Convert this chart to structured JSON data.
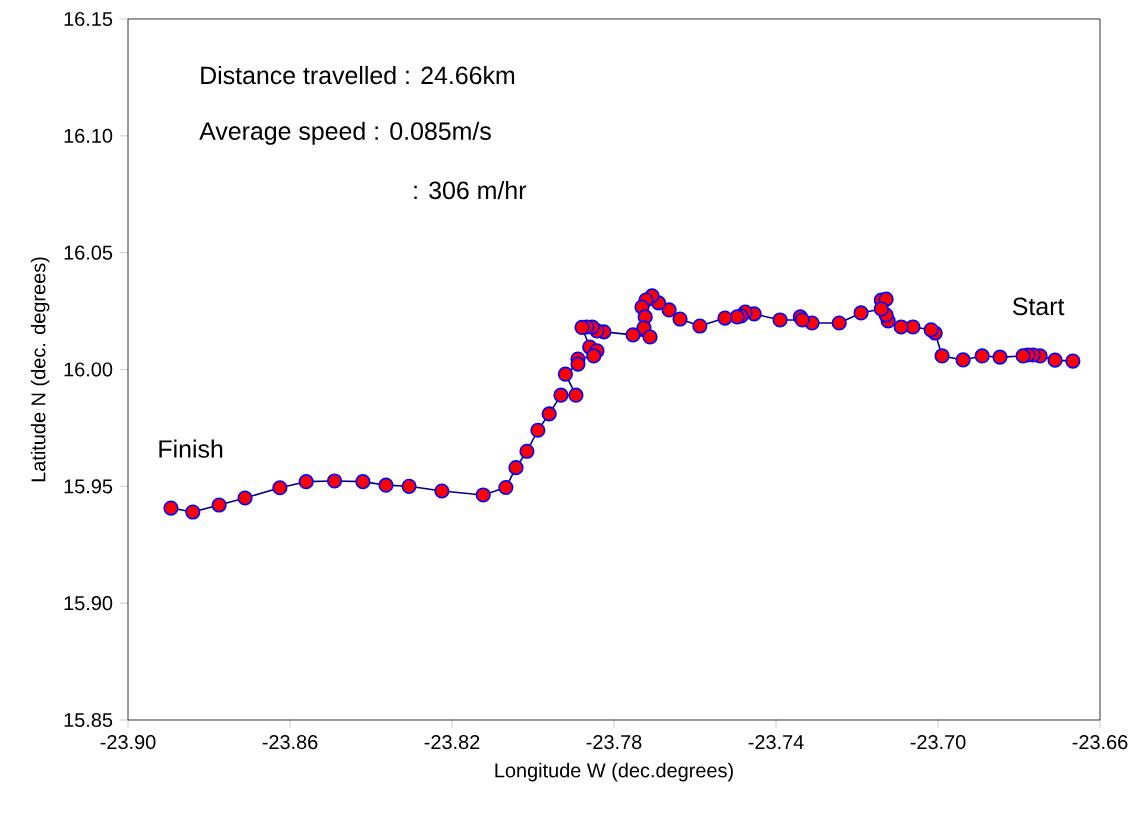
{
  "chart_data": {
    "type": "line",
    "xlabel": "Longitude W (dec.degrees)",
    "ylabel": "Latitude N (dec. degrees)",
    "annotations": [
      "Distance travelled : 24.66km",
      "Average speed : 0.085m/s",
      ": 306 m/hr",
      "Start",
      "Finish"
    ],
    "xlim": [
      -23.9,
      -23.66
    ],
    "ylim": [
      15.85,
      16.15
    ],
    "xticks": [
      {
        "value": -23.9,
        "label": "-23.90"
      },
      {
        "value": -23.86,
        "label": "-23.86"
      },
      {
        "value": -23.82,
        "label": "-23.82"
      },
      {
        "value": -23.78,
        "label": "-23.78"
      },
      {
        "value": -23.74,
        "label": "-23.74"
      },
      {
        "value": -23.7,
        "label": "-23.70"
      },
      {
        "value": -23.66,
        "label": "-23.66"
      }
    ],
    "yticks": [
      {
        "value": 15.85,
        "label": "15.85"
      },
      {
        "value": 15.9,
        "label": "15.90"
      },
      {
        "value": 15.95,
        "label": "15.95"
      },
      {
        "value": 16.0,
        "label": "16.00"
      },
      {
        "value": 16.05,
        "label": "16.05"
      },
      {
        "value": 16.1,
        "label": "16.10"
      },
      {
        "value": 16.15,
        "label": "16.15"
      }
    ],
    "marker": "circle",
    "line_style": "solid",
    "grid": false,
    "series": [
      {
        "color": "#ff0000",
        "x": [
          -23.6667,
          -23.6711,
          -23.6748,
          -23.6765,
          -23.6778,
          -23.679,
          -23.6847,
          -23.6891,
          -23.6938,
          -23.699,
          -23.7007,
          -23.7017,
          -23.7062,
          -23.7091,
          -23.7123,
          -23.7128,
          -23.714,
          -23.7128,
          -23.714,
          -23.719,
          -23.7244,
          -23.7311,
          -23.734,
          -23.7335,
          -23.739,
          -23.7454,
          -23.7476,
          -23.7486,
          -23.7496,
          -23.7526,
          -23.7588,
          -23.7637,
          -23.7664,
          -23.769,
          -23.7706,
          -23.7721,
          -23.7731,
          -23.7723,
          -23.7726,
          -23.7711,
          -23.7753,
          -23.7825,
          -23.7842,
          -23.7854,
          -23.7867,
          -23.7879,
          -23.786,
          -23.7842,
          -23.785,
          -23.7889,
          -23.7889,
          -23.792,
          -23.7894,
          -23.7931,
          -23.796,
          -23.7988,
          -23.8015,
          -23.8042,
          -23.8067,
          -23.8123,
          -23.8225,
          -23.8306,
          -23.8363,
          -23.842,
          -23.849,
          -23.856,
          -23.8625,
          -23.8711,
          -23.8775,
          -23.884,
          -23.8894
        ],
        "values": [
          16.0036,
          16.004,
          16.0058,
          16.0062,
          16.0062,
          16.0058,
          16.0053,
          16.0058,
          16.0041,
          16.0058,
          16.0156,
          16.017,
          16.0182,
          16.0182,
          16.0208,
          16.0233,
          16.0297,
          16.0301,
          16.0259,
          16.0242,
          16.0199,
          16.0199,
          16.0225,
          16.0212,
          16.0212,
          16.0238,
          16.0246,
          16.0229,
          16.0225,
          16.022,
          16.0186,
          16.0216,
          16.0255,
          16.0285,
          16.0315,
          16.0297,
          16.0267,
          16.0225,
          16.0178,
          16.0139,
          16.0148,
          16.0161,
          16.0165,
          16.0182,
          16.0182,
          16.018,
          16.0096,
          16.008,
          16.0058,
          16.0045,
          16.0023,
          15.998,
          15.989,
          15.989,
          15.981,
          15.974,
          15.965,
          15.958,
          15.9495,
          15.9463,
          15.948,
          15.95,
          15.9505,
          15.952,
          15.9523,
          15.952,
          15.9494,
          15.945,
          15.942,
          15.939,
          15.9407
        ]
      }
    ]
  }
}
